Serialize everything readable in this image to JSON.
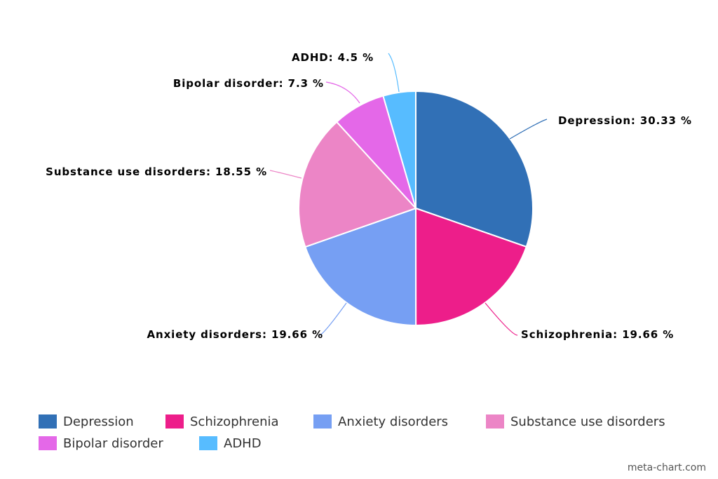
{
  "chart_data": {
    "type": "pie",
    "categories": [
      "Depression",
      "Schizophrenia",
      "Anxiety disorders",
      "Substance use disorders",
      "Bipolar disorder",
      "ADHD"
    ],
    "values": [
      30.33,
      19.66,
      19.66,
      18.55,
      7.3,
      4.5
    ],
    "labels": [
      "Depression: 30.33 %",
      "Schizophrenia: 19.66 %",
      "Anxiety disorders: 19.66 %",
      "Substance use disorders: 18.55 %",
      "Bipolar disorder: 7.3 %",
      "ADHD: 4.5 %"
    ],
    "colors": [
      "#3170b6",
      "#ed1e8a",
      "#769ff3",
      "#ec85c6",
      "#e468e8",
      "#57bcff"
    ],
    "title": "",
    "legend_position": "bottom"
  },
  "credit": "meta-chart.com"
}
